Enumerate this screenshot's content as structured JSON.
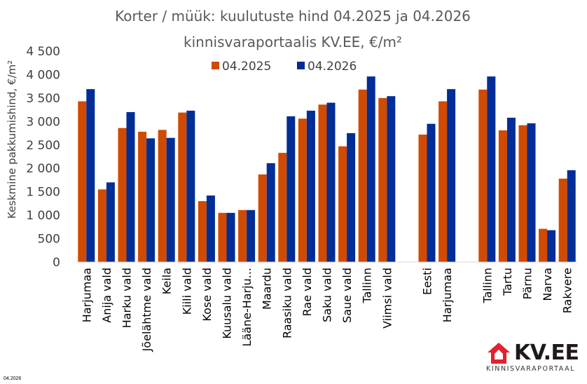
{
  "chart_data": {
    "type": "bar",
    "title": "Korter / müük: kuulutuste hind 04.2025 ja 04.2026",
    "subtitle": "kinnisvaraportaalis KV.EE, €/m²",
    "ylabel": "Keskmine pakkumishind, €/m²",
    "xlabel": "",
    "ylim": [
      0,
      4500
    ],
    "yticks": [
      "0",
      "500",
      "1 000",
      "1 500",
      "2 000",
      "2 500",
      "3 000",
      "3 500",
      "4 000",
      "4 500"
    ],
    "ytick_values": [
      0,
      500,
      1000,
      1500,
      2000,
      2500,
      3000,
      3500,
      4000,
      4500
    ],
    "grid": false,
    "legend_position": "top-center",
    "categories": [
      "Harjumaa",
      "Anija vald",
      "Harku vald",
      "Jõelähtme vald",
      "Keila",
      "Kiili vald",
      "Kose vald",
      "Kuusalu vald",
      "Lääne-Harju...",
      "Maardu",
      "Raasiku vald",
      "Rae vald",
      "Saku vald",
      "Saue vald",
      "Tallinn",
      "Viimsi vald",
      "",
      "Eesti",
      "Harjumaa",
      "",
      "Tallinn",
      "Tartu",
      "Pärnu",
      "Narva",
      "Rakvere"
    ],
    "series": [
      {
        "name": "04.2025",
        "color": "#d04a02",
        "values": [
          3430,
          1550,
          2860,
          2780,
          2820,
          3190,
          1300,
          1050,
          1110,
          1870,
          2330,
          3060,
          3360,
          2470,
          3680,
          3500,
          null,
          2720,
          3430,
          null,
          3680,
          2810,
          2920,
          710,
          1780
        ]
      },
      {
        "name": "04.2026",
        "color": "#002d96",
        "values": [
          3690,
          1700,
          3200,
          2640,
          2650,
          3230,
          1420,
          1050,
          1110,
          2110,
          3110,
          3230,
          3400,
          2750,
          3960,
          3540,
          null,
          2950,
          3690,
          null,
          3960,
          3080,
          2960,
          680,
          1960
        ]
      }
    ]
  },
  "footer": {
    "date": "04.2026"
  },
  "logo": {
    "brand": "KV.EE",
    "tagline": "KINNISVARAPORTAAL"
  }
}
